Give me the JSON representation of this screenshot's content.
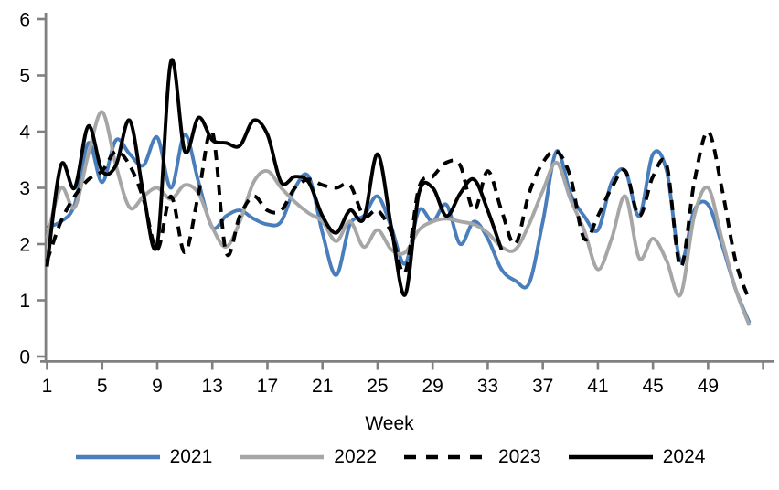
{
  "chart_data": {
    "type": "line",
    "title": "",
    "xlabel": "Week",
    "x_ticks": [
      1,
      5,
      9,
      13,
      17,
      21,
      25,
      29,
      33,
      37,
      41,
      45,
      49
    ],
    "x_tick_step": 4,
    "x_tick_max": 53,
    "y_ticks": [
      0,
      1,
      2,
      3,
      4,
      5,
      6
    ],
    "xlim": [
      1,
      52
    ],
    "ylim": [
      0,
      6
    ],
    "grid": false,
    "legend_position": "bottom",
    "axis_color": "#808080",
    "text_color": "#000000",
    "series": [
      {
        "name": "2021",
        "color": "#4a7ebb",
        "style": "solid",
        "start_week": 1,
        "values": [
          2.3,
          2.4,
          2.7,
          3.8,
          3.1,
          3.85,
          3.6,
          3.4,
          3.9,
          3.0,
          3.95,
          3.1,
          2.3,
          2.5,
          2.6,
          2.45,
          2.35,
          2.4,
          3.0,
          3.2,
          2.2,
          1.45,
          2.35,
          2.5,
          2.85,
          2.3,
          1.65,
          2.6,
          2.4,
          2.7,
          2.0,
          2.4,
          2.1,
          1.55,
          1.35,
          1.3,
          2.4,
          3.65,
          2.9,
          2.5,
          2.25,
          3.1,
          3.3,
          2.5,
          3.6,
          3.3,
          1.7,
          2.6,
          2.7,
          2.0,
          1.2,
          0.6
        ]
      },
      {
        "name": "2022",
        "color": "#a6a6a6",
        "style": "solid",
        "start_week": 1,
        "values": [
          2.1,
          3.0,
          2.65,
          3.6,
          4.35,
          3.4,
          2.65,
          2.85,
          3.0,
          2.8,
          3.05,
          2.9,
          2.3,
          1.95,
          2.4,
          3.1,
          3.3,
          3.0,
          2.75,
          2.55,
          2.4,
          2.05,
          2.4,
          1.95,
          2.25,
          1.9,
          1.85,
          2.25,
          2.4,
          2.45,
          2.4,
          2.35,
          2.2,
          1.95,
          1.9,
          2.35,
          2.95,
          3.45,
          2.8,
          2.25,
          1.55,
          2.1,
          2.85,
          1.75,
          2.1,
          1.7,
          1.1,
          2.5,
          3.0,
          2.1,
          1.2,
          0.55
        ]
      },
      {
        "name": "2023",
        "color": "#000000",
        "style": "dashed",
        "start_week": 1,
        "values": [
          1.7,
          2.4,
          2.85,
          3.15,
          3.3,
          3.65,
          3.4,
          2.8,
          1.9,
          2.85,
          1.85,
          2.9,
          4.0,
          1.85,
          2.5,
          2.85,
          2.6,
          2.6,
          3.0,
          3.15,
          3.05,
          3.0,
          3.05,
          2.5,
          2.6,
          2.2,
          1.5,
          3.0,
          3.2,
          3.45,
          3.4,
          2.6,
          3.3,
          2.6,
          2.0,
          2.9,
          3.45,
          3.65,
          3.2,
          2.1,
          2.5,
          3.0,
          3.3,
          2.5,
          3.2,
          3.4,
          1.6,
          3.1,
          4.0,
          3.0,
          1.7,
          1.0
        ]
      },
      {
        "name": "2024",
        "color": "#000000",
        "style": "solid",
        "start_week": 1,
        "values": [
          1.6,
          3.4,
          3.0,
          4.1,
          3.3,
          3.4,
          4.2,
          2.9,
          2.0,
          5.25,
          3.65,
          4.25,
          3.85,
          3.8,
          3.75,
          4.2,
          3.95,
          3.1,
          3.2,
          3.1,
          2.5,
          2.2,
          2.6,
          2.45,
          3.6,
          2.3,
          1.1,
          2.9,
          3.0,
          2.5,
          2.9,
          3.15,
          2.6,
          1.9
        ]
      }
    ]
  }
}
